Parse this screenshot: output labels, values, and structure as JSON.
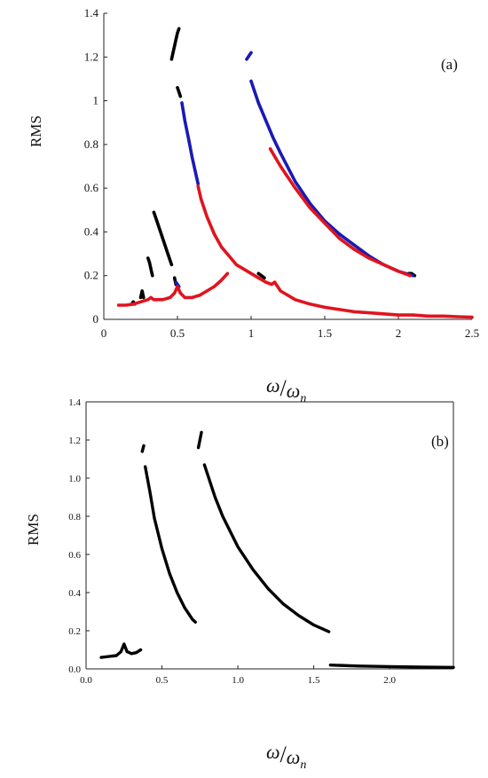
{
  "chart_data": [
    {
      "type": "scatter",
      "panel_label": "(a)",
      "ylabel": "RMS",
      "xlabel_main": "ω",
      "xlabel_sub": "n",
      "xlim": [
        0,
        2.5
      ],
      "ylim": [
        0,
        1.4
      ],
      "xticks": [
        "0",
        "0.5",
        "1",
        "1.5",
        "2",
        "2.5"
      ],
      "xtick_values": [
        0,
        0.5,
        1,
        1.5,
        2,
        2.5
      ],
      "yticks": [
        "0",
        "0.2",
        "0.4",
        "0.6",
        "0.8",
        "1",
        "1.2",
        "1.4"
      ],
      "ytick_values": [
        0,
        0.2,
        0.4,
        0.6,
        0.8,
        1,
        1.2,
        1.4
      ],
      "series": [
        {
          "color": "#000000",
          "segments": [
            [
              [
                0.19,
                0.07
              ],
              [
                0.2,
                0.08
              ],
              [
                0.21,
                0.07
              ]
            ],
            [
              [
                0.25,
                0.1
              ],
              [
                0.26,
                0.13
              ],
              [
                0.27,
                0.1
              ]
            ],
            [
              [
                0.3,
                0.28
              ],
              [
                0.31,
                0.26
              ],
              [
                0.32,
                0.23
              ],
              [
                0.33,
                0.2
              ]
            ],
            [
              [
                0.34,
                0.49
              ],
              [
                0.36,
                0.45
              ],
              [
                0.38,
                0.41
              ],
              [
                0.4,
                0.37
              ],
              [
                0.42,
                0.33
              ],
              [
                0.44,
                0.29
              ],
              [
                0.46,
                0.25
              ]
            ],
            [
              [
                0.48,
                0.19
              ],
              [
                0.49,
                0.16
              ]
            ],
            [
              [
                0.46,
                1.19
              ],
              [
                0.47,
                1.22
              ],
              [
                0.48,
                1.25
              ],
              [
                0.49,
                1.28
              ],
              [
                0.5,
                1.31
              ],
              [
                0.51,
                1.33
              ]
            ],
            [
              [
                0.5,
                1.06
              ],
              [
                0.51,
                1.04
              ],
              [
                0.52,
                1.02
              ]
            ],
            [
              [
                1.05,
                0.21
              ],
              [
                1.07,
                0.2
              ],
              [
                1.09,
                0.19
              ]
            ],
            [
              [
                2.07,
                0.21
              ],
              [
                2.09,
                0.21
              ],
              [
                2.11,
                0.2
              ]
            ]
          ]
        },
        {
          "color": "#1a1ab4",
          "segments": [
            [
              [
                0.97,
                1.19
              ],
              [
                0.98,
                1.2
              ],
              [
                0.99,
                1.21
              ],
              [
                1.0,
                1.22
              ]
            ],
            [
              [
                0.49,
                0.17
              ],
              [
                0.5,
                0.16
              ],
              [
                0.51,
                0.15
              ]
            ],
            [
              [
                0.53,
                0.99
              ],
              [
                0.55,
                0.91
              ],
              [
                0.58,
                0.81
              ],
              [
                0.6,
                0.74
              ],
              [
                0.62,
                0.68
              ],
              [
                0.64,
                0.62
              ]
            ],
            [
              [
                1.0,
                1.09
              ],
              [
                1.05,
                0.99
              ],
              [
                1.1,
                0.91
              ],
              [
                1.15,
                0.83
              ],
              [
                1.2,
                0.76
              ],
              [
                1.3,
                0.63
              ],
              [
                1.4,
                0.53
              ],
              [
                1.5,
                0.45
              ],
              [
                1.6,
                0.39
              ],
              [
                1.7,
                0.34
              ],
              [
                1.8,
                0.29
              ],
              [
                1.9,
                0.25
              ],
              [
                2.0,
                0.22
              ],
              [
                2.1,
                0.2
              ]
            ]
          ]
        },
        {
          "color": "#e0141e",
          "segments": [
            [
              [
                0.1,
                0.065
              ],
              [
                0.15,
                0.065
              ],
              [
                0.2,
                0.07
              ],
              [
                0.25,
                0.08
              ],
              [
                0.3,
                0.09
              ],
              [
                0.32,
                0.1
              ],
              [
                0.34,
                0.09
              ],
              [
                0.4,
                0.09
              ],
              [
                0.45,
                0.1
              ],
              [
                0.48,
                0.12
              ],
              [
                0.5,
                0.15
              ],
              [
                0.52,
                0.12
              ],
              [
                0.55,
                0.1
              ],
              [
                0.6,
                0.1
              ],
              [
                0.65,
                0.11
              ],
              [
                0.7,
                0.13
              ],
              [
                0.75,
                0.15
              ],
              [
                0.8,
                0.18
              ],
              [
                0.84,
                0.21
              ]
            ],
            [
              [
                0.64,
                0.61
              ],
              [
                0.66,
                0.55
              ],
              [
                0.7,
                0.47
              ],
              [
                0.75,
                0.39
              ],
              [
                0.8,
                0.33
              ],
              [
                0.85,
                0.29
              ],
              [
                0.9,
                0.25
              ],
              [
                0.95,
                0.23
              ],
              [
                1.0,
                0.21
              ],
              [
                1.05,
                0.19
              ],
              [
                1.1,
                0.17
              ],
              [
                1.14,
                0.16
              ],
              [
                1.16,
                0.17
              ]
            ],
            [
              [
                1.16,
                0.17
              ],
              [
                1.2,
                0.13
              ],
              [
                1.3,
                0.09
              ],
              [
                1.4,
                0.07
              ],
              [
                1.5,
                0.055
              ],
              [
                1.6,
                0.045
              ],
              [
                1.7,
                0.035
              ],
              [
                1.8,
                0.03
              ],
              [
                1.9,
                0.025
              ],
              [
                2.0,
                0.02
              ],
              [
                2.1,
                0.02
              ],
              [
                2.2,
                0.015
              ],
              [
                2.3,
                0.015
              ],
              [
                2.4,
                0.012
              ],
              [
                2.5,
                0.01
              ]
            ],
            [
              [
                1.13,
                0.78
              ],
              [
                1.2,
                0.7
              ],
              [
                1.3,
                0.6
              ],
              [
                1.4,
                0.51
              ],
              [
                1.5,
                0.44
              ],
              [
                1.6,
                0.37
              ],
              [
                1.7,
                0.32
              ],
              [
                1.8,
                0.28
              ],
              [
                1.9,
                0.25
              ],
              [
                2.0,
                0.22
              ],
              [
                2.08,
                0.2
              ]
            ]
          ]
        }
      ]
    },
    {
      "type": "scatter",
      "panel_label": "(b)",
      "ylabel": "RMS",
      "xlabel_main": "ω",
      "xlabel_sub": "n",
      "xlim": [
        0,
        2.42
      ],
      "ylim": [
        0,
        1.4
      ],
      "xticks": [
        "0.0",
        "0.5",
        "1.0",
        "1.5",
        "2.0"
      ],
      "xtick_values": [
        0,
        0.5,
        1,
        1.5,
        2
      ],
      "yticks": [
        "0.0",
        "0.2",
        "0.4",
        "0.6",
        "0.8",
        "1.0",
        "1.2",
        "1.4"
      ],
      "ytick_values": [
        0,
        0.2,
        0.4,
        0.6,
        0.8,
        1,
        1.2,
        1.4
      ],
      "series": [
        {
          "color": "#000000",
          "segments": [
            [
              [
                0.1,
                0.06
              ],
              [
                0.15,
                0.065
              ],
              [
                0.2,
                0.07
              ],
              [
                0.23,
                0.09
              ],
              [
                0.25,
                0.13
              ],
              [
                0.27,
                0.09
              ],
              [
                0.3,
                0.08
              ],
              [
                0.33,
                0.085
              ],
              [
                0.36,
                0.1
              ]
            ],
            [
              [
                0.37,
                1.14
              ],
              [
                0.38,
                1.17
              ]
            ],
            [
              [
                0.39,
                1.06
              ],
              [
                0.42,
                0.93
              ],
              [
                0.45,
                0.79
              ],
              [
                0.5,
                0.63
              ],
              [
                0.55,
                0.5
              ],
              [
                0.6,
                0.4
              ],
              [
                0.65,
                0.32
              ],
              [
                0.7,
                0.26
              ],
              [
                0.72,
                0.245
              ]
            ],
            [
              [
                0.74,
                1.16
              ],
              [
                0.76,
                1.24
              ]
            ],
            [
              [
                0.78,
                1.07
              ],
              [
                0.85,
                0.9
              ],
              [
                0.9,
                0.8
              ],
              [
                1.0,
                0.64
              ],
              [
                1.1,
                0.52
              ],
              [
                1.2,
                0.42
              ],
              [
                1.3,
                0.34
              ],
              [
                1.4,
                0.28
              ],
              [
                1.5,
                0.23
              ],
              [
                1.6,
                0.195
              ]
            ],
            [
              [
                1.61,
                0.02
              ],
              [
                1.8,
                0.015
              ],
              [
                2.0,
                0.012
              ],
              [
                2.2,
                0.01
              ],
              [
                2.42,
                0.008
              ]
            ]
          ]
        }
      ]
    }
  ]
}
